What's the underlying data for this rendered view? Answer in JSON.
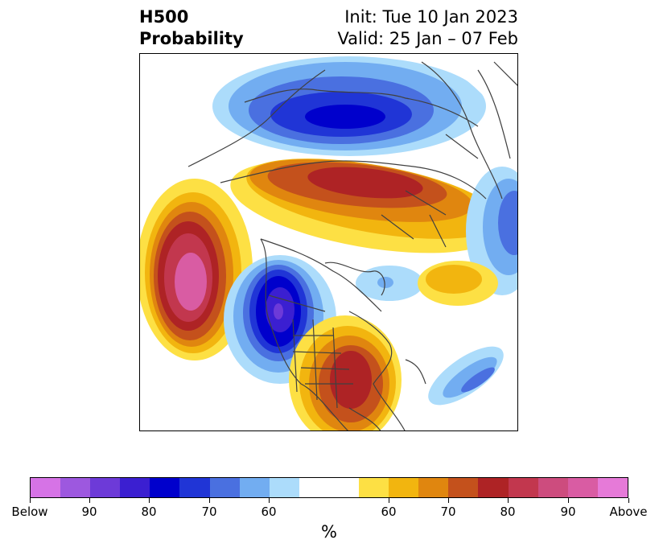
{
  "header": {
    "title_line1": "H500",
    "title_line2": "Probability",
    "init_text": "Init: Tue 10 Jan 2023",
    "valid_text": "Valid: 25 Jan – 07 Feb"
  },
  "map": {
    "projection": "north-polar-stereographic",
    "anomalies": [
      {
        "name": "north-pacific",
        "sign": "above",
        "peak_level": "90"
      },
      {
        "name": "western-north-america",
        "sign": "below",
        "peak_level": "90"
      },
      {
        "name": "eastern-united-states",
        "sign": "above",
        "peak_level": "80"
      },
      {
        "name": "northern-eurasia",
        "sign": "above",
        "peak_level": "80"
      },
      {
        "name": "north-asia-arctic",
        "sign": "below",
        "peak_level": "80"
      },
      {
        "name": "western-atlantic",
        "sign": "below",
        "peak_level": "70"
      }
    ]
  },
  "colorbar": {
    "unit_label": "%",
    "colors": [
      "#d673e6",
      "#9d58df",
      "#6d3ad8",
      "#3b1fd1",
      "#0000cc",
      "#2035d6",
      "#4a70e0",
      "#72adf1",
      "#acdcfb",
      "#ffffff",
      "#ffffff",
      "#fde044",
      "#f2b50f",
      "#e0860f",
      "#c4511c",
      "#ae2325",
      "#c2374e",
      "#cd4c7e",
      "#d95ca3",
      "#e67ad8"
    ],
    "tick_labels": [
      "Below",
      "90",
      "80",
      "70",
      "60",
      "60",
      "70",
      "80",
      "90",
      "Above"
    ]
  }
}
